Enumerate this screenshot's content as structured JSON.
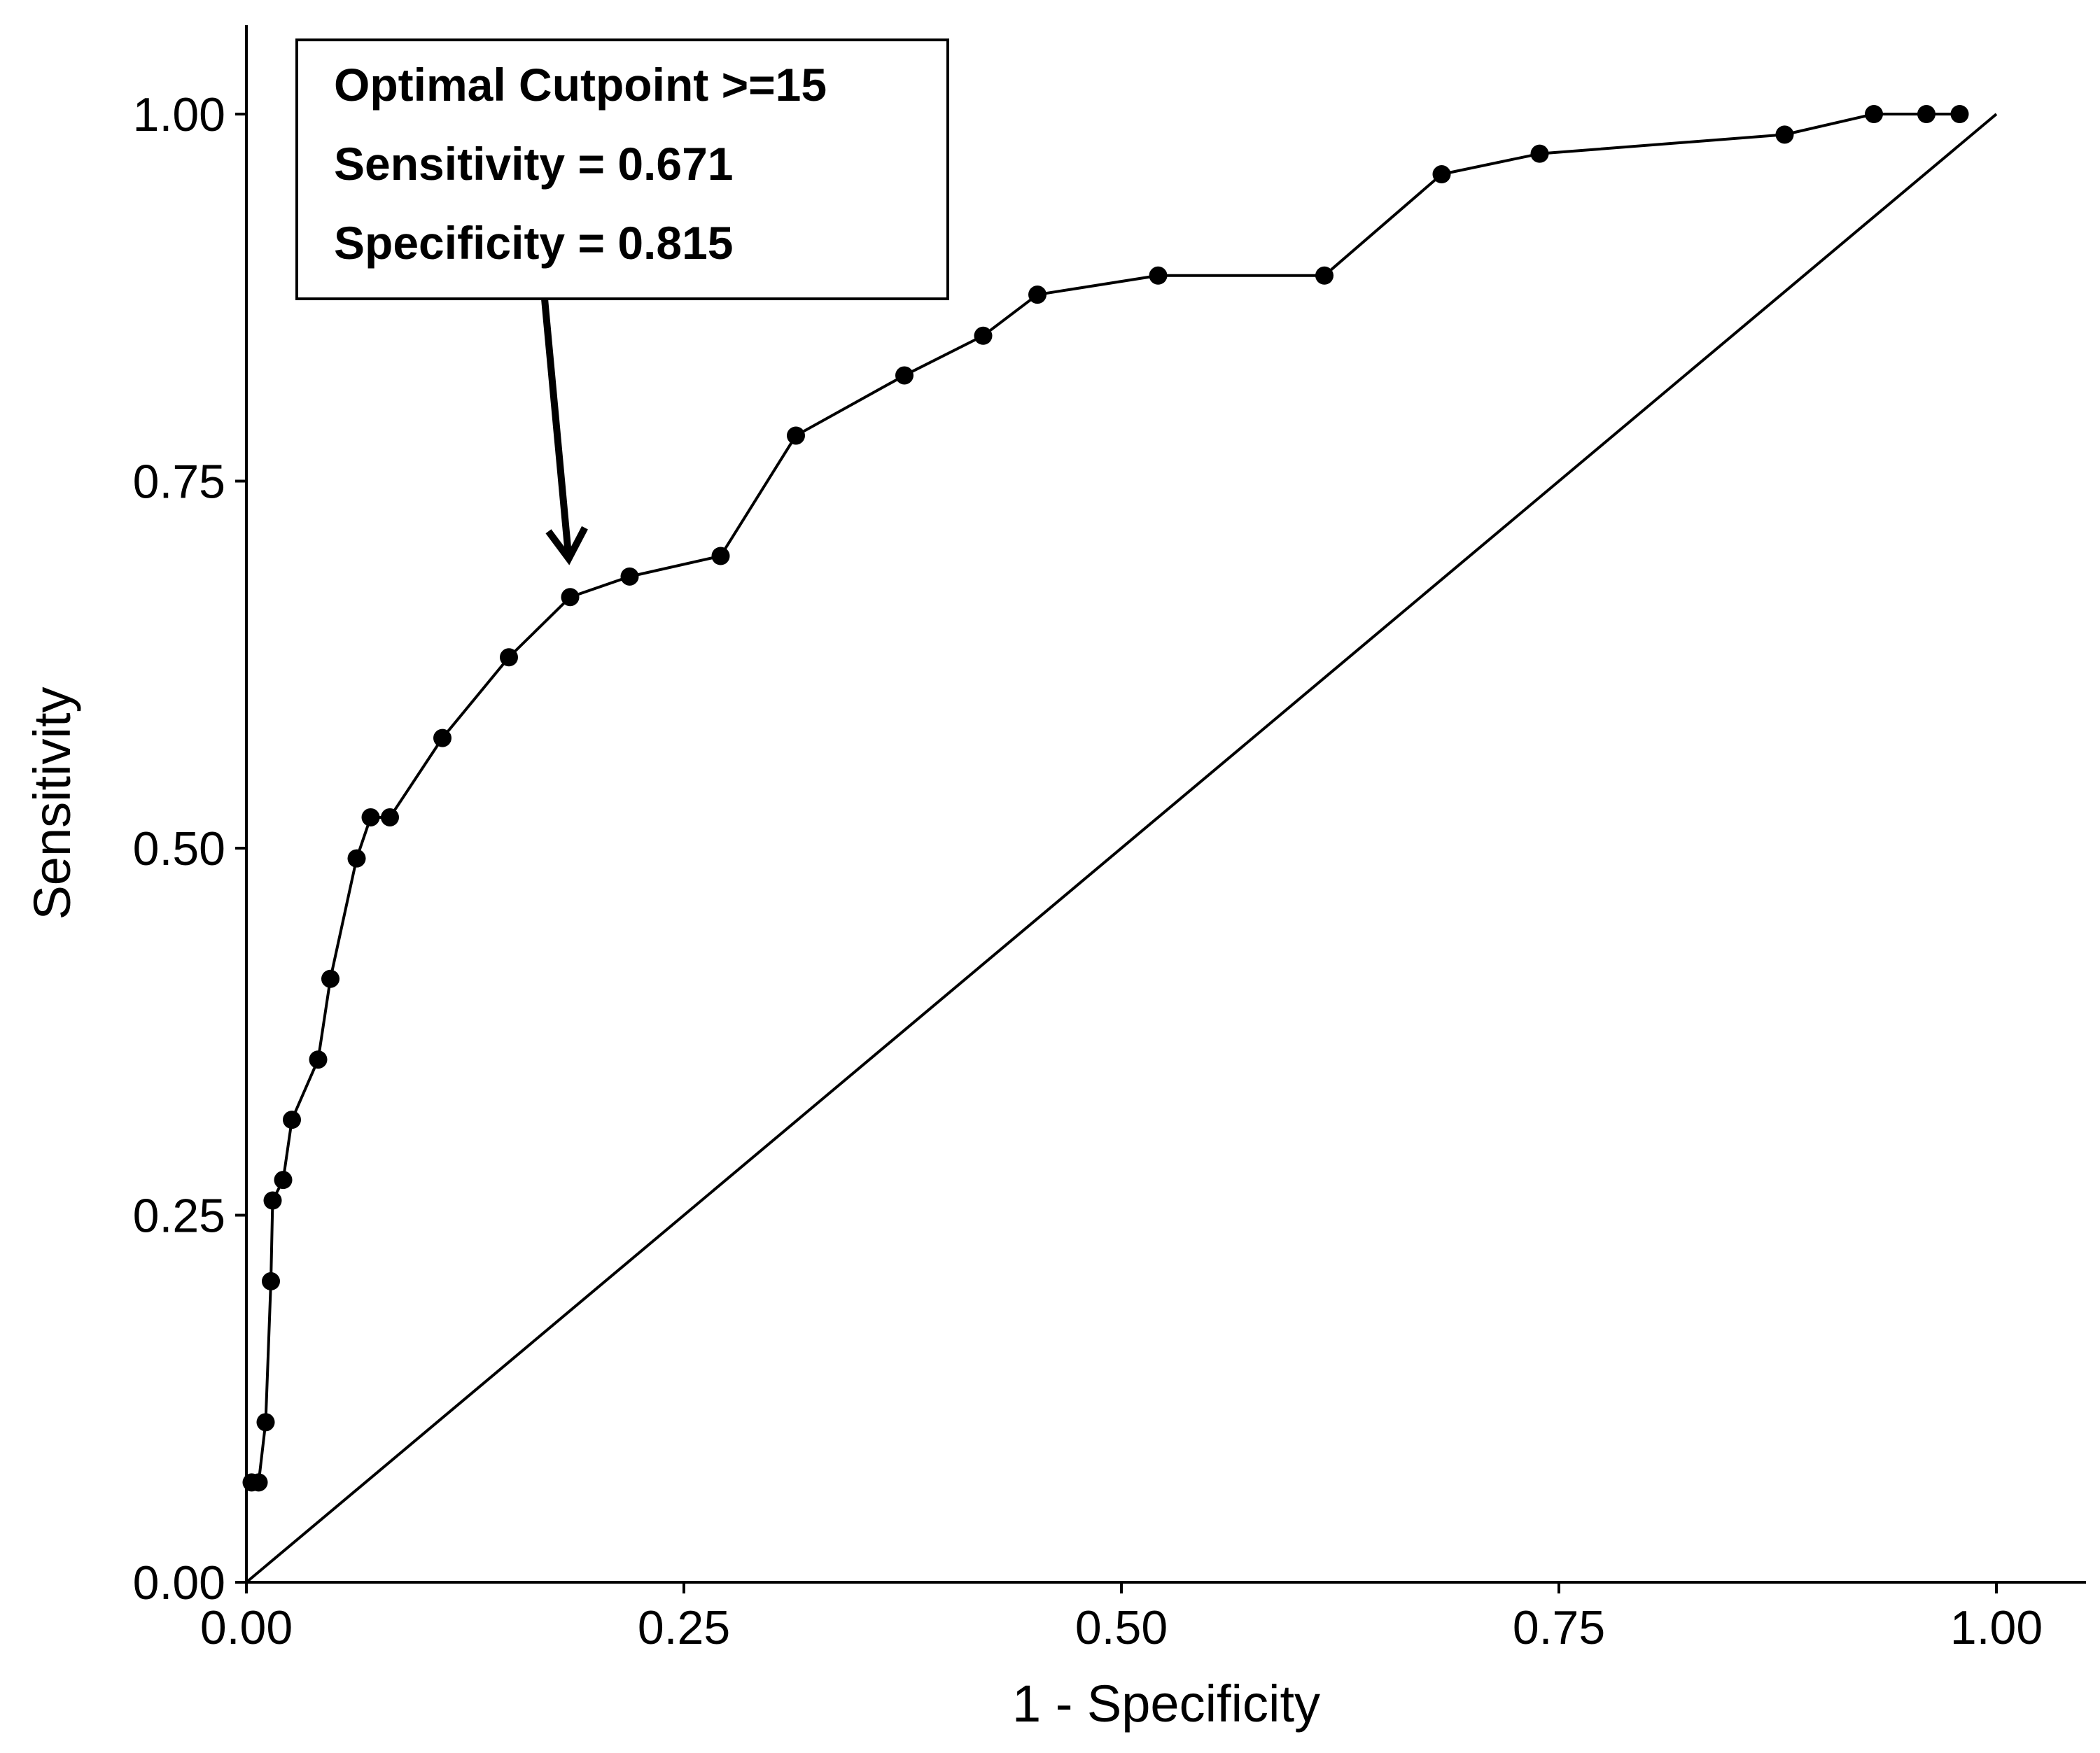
{
  "chart_data": {
    "type": "line",
    "title": "",
    "xlabel": "1 - Specificity",
    "ylabel": "Sensitivity",
    "xlim": [
      0,
      1
    ],
    "ylim": [
      0,
      1
    ],
    "x_ticks": [
      "0.00",
      "0.25",
      "0.50",
      "0.75",
      "1.00"
    ],
    "y_ticks": [
      "0.00",
      "0.25",
      "0.50",
      "0.75",
      "1.00"
    ],
    "grid": false,
    "legend": "none",
    "series": [
      {
        "name": "",
        "color": "#000000",
        "points": [
          {
            "x": 0.003,
            "y": 0.068
          },
          {
            "x": 0.007,
            "y": 0.068
          },
          {
            "x": 0.011,
            "y": 0.109
          },
          {
            "x": 0.014,
            "y": 0.205
          },
          {
            "x": 0.015,
            "y": 0.26
          },
          {
            "x": 0.021,
            "y": 0.274
          },
          {
            "x": 0.026,
            "y": 0.315
          },
          {
            "x": 0.041,
            "y": 0.356
          },
          {
            "x": 0.048,
            "y": 0.411
          },
          {
            "x": 0.063,
            "y": 0.493
          },
          {
            "x": 0.071,
            "y": 0.521
          },
          {
            "x": 0.082,
            "y": 0.521
          },
          {
            "x": 0.112,
            "y": 0.575
          },
          {
            "x": 0.15,
            "y": 0.63
          },
          {
            "x": 0.185,
            "y": 0.671
          },
          {
            "x": 0.219,
            "y": 0.685
          },
          {
            "x": 0.271,
            "y": 0.699
          },
          {
            "x": 0.314,
            "y": 0.781
          },
          {
            "x": 0.376,
            "y": 0.822
          },
          {
            "x": 0.421,
            "y": 0.849
          },
          {
            "x": 0.452,
            "y": 0.877
          },
          {
            "x": 0.521,
            "y": 0.89
          },
          {
            "x": 0.616,
            "y": 0.89
          },
          {
            "x": 0.683,
            "y": 0.959
          },
          {
            "x": 0.739,
            "y": 0.973
          },
          {
            "x": 0.879,
            "y": 0.986
          },
          {
            "x": 0.93,
            "y": 1.0
          },
          {
            "x": 0.96,
            "y": 1.0
          },
          {
            "x": 0.979,
            "y": 1.0
          }
        ]
      }
    ],
    "reference_line": {
      "from": [
        0,
        0
      ],
      "to": [
        1,
        1
      ],
      "color": "#000000"
    },
    "annotation": {
      "lines": [
        "Optimal Cutpoint >=15",
        "Sensitivity = 0.671",
        "Specificity = 0.815"
      ],
      "arrow_target": {
        "x": 0.185,
        "y": 0.671
      }
    }
  }
}
